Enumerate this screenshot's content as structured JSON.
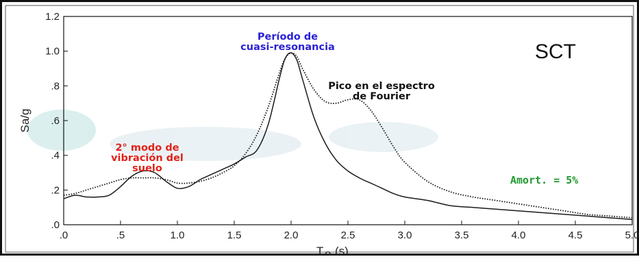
{
  "chart_data": {
    "type": "line",
    "title": "SCT",
    "xlabel": "T",
    "xlabel_sub": "o",
    "xlabel_unit": "(s)",
    "ylabel": "Sa/g",
    "xlim": [
      0,
      5
    ],
    "ylim": [
      0,
      1.2
    ],
    "x_ticks": [
      0,
      0.5,
      1,
      1.5,
      2,
      2.5,
      3,
      3.5,
      4,
      4.5,
      5
    ],
    "x_tick_labels": [
      ".0",
      ".5",
      "1.0",
      "1.5",
      "2.0",
      "2.5",
      "3.0",
      "3.5",
      "4.0",
      "4.5",
      "5.0"
    ],
    "y_ticks": [
      0,
      0.2,
      0.4,
      0.6,
      0.8,
      1.0,
      1.2
    ],
    "y_tick_labels": [
      ".0",
      ".2",
      ".4",
      ".6",
      ".8",
      "1.0",
      "1.2"
    ],
    "grid": false,
    "series": [
      {
        "style": "solid",
        "color": "#1a1a1a",
        "x": [
          0,
          0.1,
          0.2,
          0.3,
          0.4,
          0.5,
          0.6,
          0.7,
          0.8,
          0.9,
          1.0,
          1.1,
          1.2,
          1.3,
          1.4,
          1.5,
          1.6,
          1.7,
          1.8,
          1.9,
          1.95,
          2.0,
          2.05,
          2.1,
          2.2,
          2.3,
          2.4,
          2.5,
          2.6,
          2.7,
          2.8,
          2.9,
          3.0,
          3.2,
          3.4,
          3.6,
          3.8,
          4.0,
          4.2,
          4.4,
          4.6,
          4.8,
          5.0
        ],
        "y": [
          0.15,
          0.17,
          0.16,
          0.16,
          0.17,
          0.22,
          0.28,
          0.31,
          0.3,
          0.25,
          0.21,
          0.22,
          0.26,
          0.29,
          0.32,
          0.35,
          0.39,
          0.43,
          0.58,
          0.85,
          0.96,
          0.99,
          0.95,
          0.84,
          0.62,
          0.47,
          0.37,
          0.31,
          0.27,
          0.24,
          0.21,
          0.18,
          0.16,
          0.14,
          0.11,
          0.1,
          0.09,
          0.08,
          0.07,
          0.06,
          0.05,
          0.04,
          0.03
        ]
      },
      {
        "style": "dotted",
        "color": "#1a1a1a",
        "x": [
          0,
          0.1,
          0.2,
          0.3,
          0.4,
          0.5,
          0.6,
          0.7,
          0.8,
          0.9,
          1.0,
          1.1,
          1.2,
          1.3,
          1.4,
          1.5,
          1.6,
          1.7,
          1.8,
          1.9,
          1.95,
          2.0,
          2.05,
          2.1,
          2.2,
          2.3,
          2.4,
          2.5,
          2.6,
          2.7,
          2.8,
          2.9,
          3.0,
          3.2,
          3.4,
          3.6,
          3.8,
          4.0,
          4.2,
          4.4,
          4.6,
          4.8,
          5.0
        ],
        "y": [
          0.17,
          0.18,
          0.2,
          0.22,
          0.24,
          0.26,
          0.27,
          0.27,
          0.27,
          0.26,
          0.24,
          0.24,
          0.25,
          0.27,
          0.3,
          0.34,
          0.41,
          0.52,
          0.68,
          0.88,
          0.96,
          0.99,
          0.97,
          0.9,
          0.78,
          0.71,
          0.7,
          0.72,
          0.72,
          0.66,
          0.56,
          0.45,
          0.36,
          0.25,
          0.19,
          0.16,
          0.14,
          0.12,
          0.1,
          0.08,
          0.06,
          0.05,
          0.04
        ]
      }
    ],
    "annotations": [
      {
        "lines": [
          "Período de",
          "cuasi-resonancia"
        ],
        "color": "#2b22d6"
      },
      {
        "lines": [
          "Pico en el espectro",
          "de Fourier"
        ],
        "color": "#111111"
      },
      {
        "lines": [
          "2° modo de",
          "vibración del",
          "suelo"
        ],
        "color": "#e2231a"
      },
      {
        "lines": [
          "Amort. = 5%"
        ],
        "color": "#1f9a2e"
      }
    ]
  }
}
